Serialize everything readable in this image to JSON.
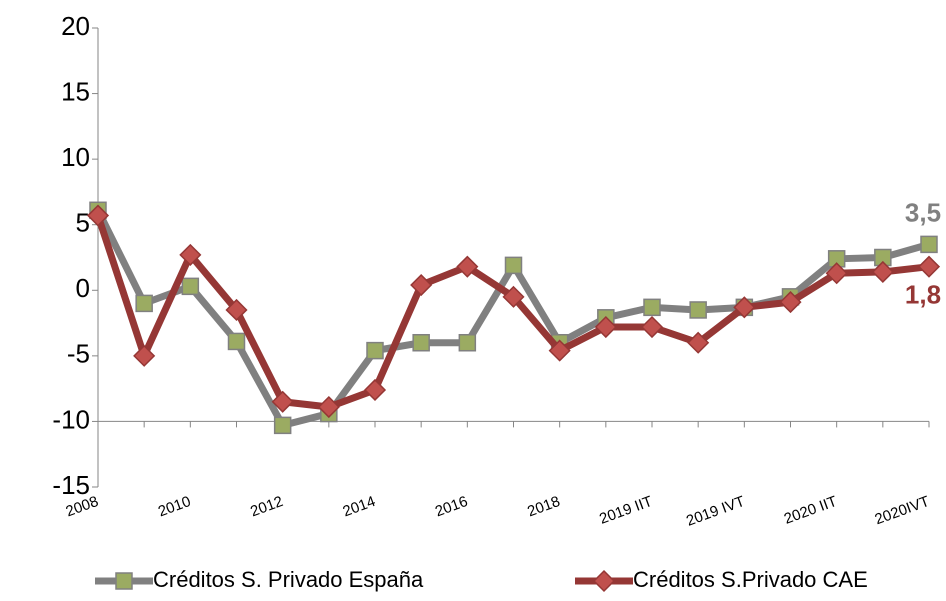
{
  "chart_data": {
    "type": "line",
    "categories": [
      "2008",
      null,
      "2010",
      null,
      "2012",
      null,
      "2014",
      null,
      "2016",
      null,
      "2018",
      null,
      "2019 IIT",
      null,
      "2019 IVT",
      null,
      "2020 IIT",
      null,
      "2020IVT"
    ],
    "series": [
      {
        "name": "Créditos S. Privado España",
        "color": "#808080",
        "marker": "square",
        "marker_color": "#9bab62",
        "values": [
          6.1,
          -1.0,
          0.3,
          -3.9,
          -10.3,
          -9.4,
          -4.6,
          -4.0,
          -4.0,
          1.9,
          -4.0,
          -2.1,
          -1.3,
          -1.5,
          -1.3,
          -0.5,
          2.4,
          2.5,
          3.5
        ],
        "value_labels": [
          null,
          null,
          null,
          null,
          null,
          null,
          null,
          null,
          null,
          null,
          null,
          null,
          null,
          null,
          null,
          null,
          null,
          null,
          "3,5"
        ]
      },
      {
        "name": "Créditos S.Privado CAE",
        "color": "#953735",
        "marker": "diamond",
        "marker_color": "#c0504d",
        "values": [
          5.7,
          -5.0,
          2.7,
          -1.5,
          -8.5,
          -8.9,
          -7.6,
          0.4,
          1.8,
          -0.5,
          -4.6,
          -2.8,
          -2.8,
          -4.0,
          -1.3,
          -0.9,
          1.3,
          1.4,
          1.8
        ],
        "value_labels": [
          null,
          null,
          null,
          null,
          null,
          null,
          null,
          null,
          null,
          null,
          null,
          null,
          null,
          null,
          null,
          null,
          null,
          null,
          "1,8"
        ]
      }
    ],
    "ylim": [
      -15,
      20
    ],
    "yticks": [
      -15,
      -10,
      -5,
      0,
      5,
      10,
      15,
      20
    ],
    "xaxis_crosses": -10,
    "legend": "bottom"
  }
}
